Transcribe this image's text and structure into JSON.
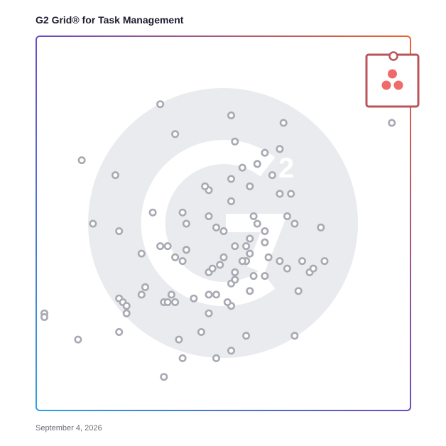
{
  "header": {
    "title": "G2 Grid® for Task Management"
  },
  "footer": {
    "date": "September 4, 2026"
  },
  "colors": {
    "border_start": "#2f7fd6",
    "border_mid": "#6a4bc4",
    "border_end": "#f0622d",
    "point_stroke": "#a8a9b3",
    "highlight": "#b8545a",
    "logo_dots": "#f06a6a",
    "watermark": "#eaebee"
  },
  "icons": {
    "watermark": "g2-logo-watermark-icon",
    "highlight": "asana-logo-icon"
  },
  "chart_data": {
    "type": "scatter",
    "title": "G2 Grid® for Task Management",
    "xlabel": "",
    "ylabel": "",
    "xlim": [
      0,
      100
    ],
    "ylim": [
      0,
      100
    ],
    "grid": "quadrants",
    "x": [
      95,
      33,
      52,
      66,
      37,
      53,
      65,
      46,
      12,
      21,
      61,
      52,
      63,
      57,
      59,
      55,
      52,
      45,
      65,
      68,
      39,
      15,
      40,
      58,
      67,
      31,
      46,
      22,
      59,
      61,
      50,
      48,
      69,
      61,
      57,
      56,
      53,
      76,
      71,
      57,
      56,
      61,
      39,
      28,
      35,
      53,
      33,
      22,
      50,
      40,
      65,
      52,
      62,
      37,
      55,
      46,
      47,
      67,
      49,
      77,
      29,
      73,
      74,
      28,
      58,
      53,
      23,
      57,
      70,
      36,
      24,
      34,
      35,
      37,
      52,
      42,
      46,
      46,
      51,
      48,
      24,
      22,
      2,
      11,
      2,
      44,
      56,
      69,
      52,
      38,
      48,
      39,
      34
    ],
    "y": [
      77,
      82,
      79,
      77,
      74,
      72,
      70,
      59,
      67,
      63,
      69,
      62,
      63,
      60,
      66,
      65,
      56,
      60,
      58,
      58,
      53,
      50,
      50,
      52,
      52,
      53,
      52,
      48,
      50,
      48,
      48,
      49,
      50,
      45,
      46,
      44,
      44,
      49,
      40,
      42,
      40,
      36,
      40,
      42,
      44,
      37,
      44,
      30,
      41,
      43,
      40,
      34,
      41,
      41,
      40,
      37,
      38,
      38,
      39,
      40,
      33,
      37,
      38,
      31,
      36,
      35,
      29,
      32,
      32,
      31,
      28,
      29,
      29,
      29,
      28,
      30,
      31,
      26,
      29,
      31,
      26,
      21,
      26,
      19,
      25,
      21,
      20,
      20,
      16,
      19,
      14,
      14,
      9
    ],
    "highlight": {
      "x": 95,
      "y": 90
    }
  }
}
